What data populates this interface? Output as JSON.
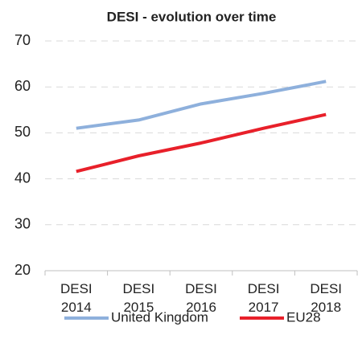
{
  "chart_data": {
    "type": "line",
    "title": "DESI - evolution over time",
    "categories": [
      "DESI 2014",
      "DESI 2015",
      "DESI 2016",
      "DESI 2017",
      "DESI 2018"
    ],
    "series": [
      {
        "name": "United Kingdom",
        "color": "#8eb0dc",
        "values": [
          51,
          52.8,
          56.3,
          58.6,
          61.2
        ]
      },
      {
        "name": "EU28",
        "color": "#e8202a",
        "values": [
          41.6,
          45,
          47.8,
          51,
          54
        ]
      }
    ],
    "ylim": [
      20,
      70
    ],
    "yticks": [
      20,
      30,
      40,
      50,
      60,
      70
    ],
    "grid": true,
    "legend": "bottom"
  }
}
